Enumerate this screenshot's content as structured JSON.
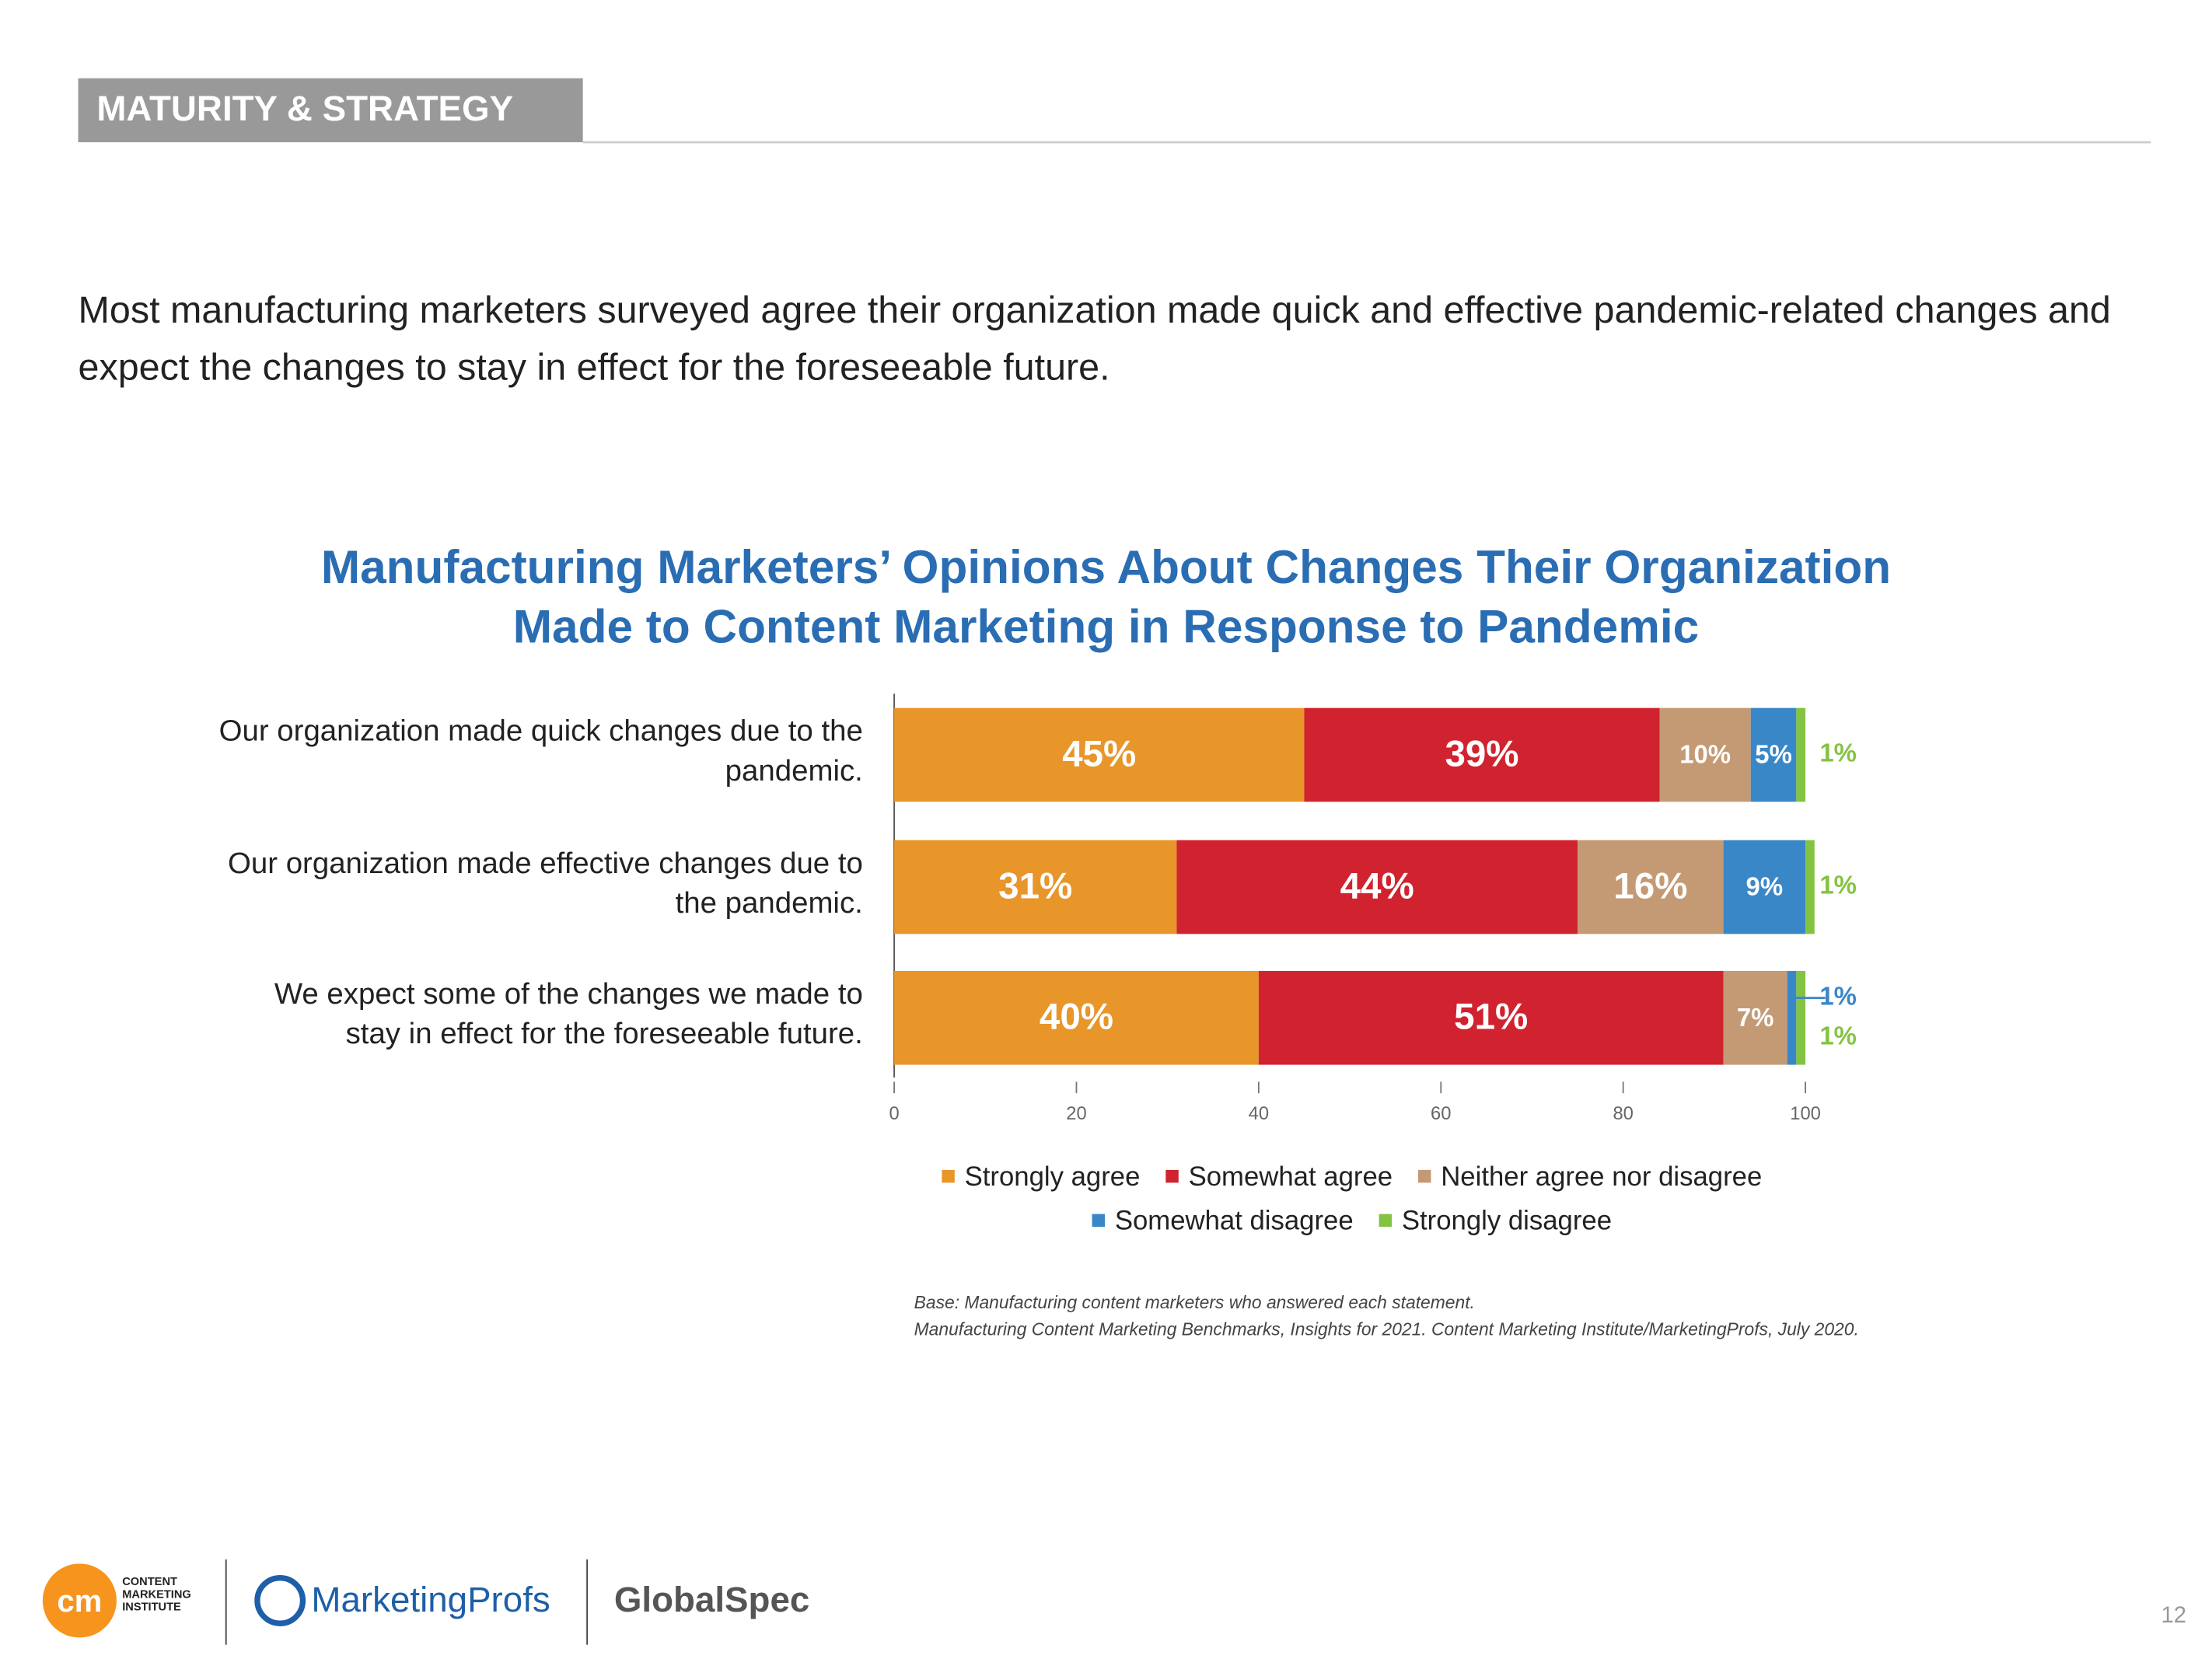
{
  "header": {
    "section": "MATURITY & STRATEGY",
    "intro": "Most manufacturing marketers surveyed agree their organization made quick and effective pandemic-related changes and expect the changes to stay in effect for the foreseeable future."
  },
  "chart_data": {
    "type": "stacked-bar-horizontal",
    "title": "Manufacturing Marketers’ Opinions About Changes Their Organization Made to Content Marketing in Response to Pandemic",
    "categories": [
      "Our organization made quick changes due to the pandemic.",
      "Our organization made effective changes due to the pandemic.",
      "We expect some of the changes we made to stay in effect for the foreseeable future."
    ],
    "series": [
      {
        "name": "Strongly agree",
        "color": "#e8952a",
        "values": [
          45,
          31,
          40
        ],
        "value_labels": [
          "45%",
          "31%",
          "40%"
        ]
      },
      {
        "name": "Somewhat agree",
        "color": "#d0232f",
        "values": [
          39,
          44,
          51
        ],
        "value_labels": [
          "39%",
          "44%",
          "51%"
        ]
      },
      {
        "name": "Neither agree nor disagree",
        "color": "#c49a74",
        "values": [
          10,
          16,
          7
        ],
        "value_labels": [
          "10%",
          "16%",
          "7%"
        ]
      },
      {
        "name": "Somewhat disagree",
        "color": "#3a87c8",
        "values": [
          5,
          9,
          1
        ],
        "value_labels": [
          "5%",
          "9%",
          "1%"
        ]
      },
      {
        "name": "Strongly disagree",
        "color": "#84c341",
        "values": [
          1,
          1,
          1
        ],
        "value_labels": [
          "1%",
          "1%",
          "1%"
        ]
      }
    ],
    "xlim": [
      0,
      100
    ],
    "xticks": [
      0,
      20,
      40,
      60,
      80,
      100
    ],
    "notes": [
      "Base: Manufacturing content marketers who answered each statement.",
      "Manufacturing Content Marketing Benchmarks, Insights for 2021. Content Marketing Institute/MarketingProfs, July 2020."
    ]
  },
  "footer": {
    "logos": [
      "CONTENT MARKETING INSTITUTE",
      "MarketingProfs",
      "GlobalSpec"
    ],
    "page": "12"
  }
}
